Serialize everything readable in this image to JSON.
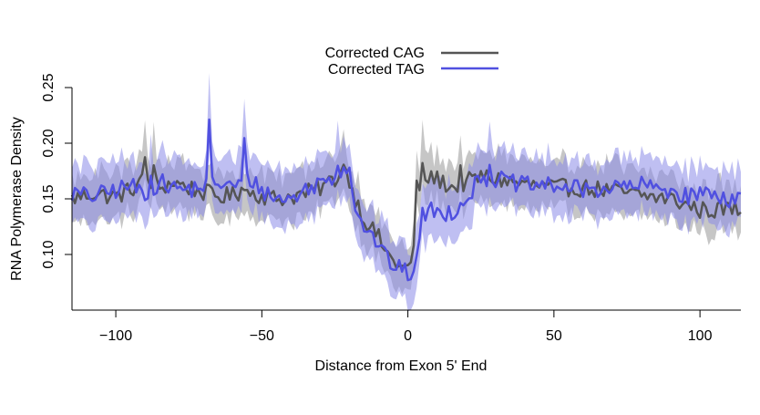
{
  "chart_data": {
    "type": "line",
    "xlabel": "Distance from Exon 5' End",
    "ylabel": "RNA Polymerase Density",
    "xlim": [
      -115,
      114
    ],
    "ylim": [
      0.05,
      0.25
    ],
    "xticks": [
      -100,
      -50,
      0,
      50,
      100
    ],
    "xtick_labels": [
      "−100",
      "−50",
      "0",
      "50",
      "100"
    ],
    "yticks": [
      0.1,
      0.15,
      0.2,
      0.25
    ],
    "ytick_labels": [
      "0.10",
      "0.15",
      "0.20",
      "0.25"
    ],
    "grid": false,
    "legend_position": "top-center",
    "x_range": {
      "start": -115,
      "end": 114,
      "step": 1
    },
    "series": [
      {
        "name": "Corrected CAG",
        "color": "#555555",
        "band_color": "#bcbcbc",
        "band_halfwidth": 0.021,
        "knots": [
          [
            -115,
            0.15
          ],
          [
            -108,
            0.155
          ],
          [
            -100,
            0.152
          ],
          [
            -95,
            0.158
          ],
          [
            -90,
            0.168
          ],
          [
            -85,
            0.16
          ],
          [
            -80,
            0.165
          ],
          [
            -75,
            0.16
          ],
          [
            -70,
            0.156
          ],
          [
            -65,
            0.152
          ],
          [
            -60,
            0.153
          ],
          [
            -55,
            0.157
          ],
          [
            -50,
            0.153
          ],
          [
            -45,
            0.15
          ],
          [
            -40,
            0.152
          ],
          [
            -35,
            0.155
          ],
          [
            -30,
            0.16
          ],
          [
            -25,
            0.168
          ],
          [
            -22,
            0.175
          ],
          [
            -20,
            0.168
          ],
          [
            -18,
            0.15
          ],
          [
            -15,
            0.132
          ],
          [
            -12,
            0.122
          ],
          [
            -10,
            0.115
          ],
          [
            -7,
            0.1
          ],
          [
            -4,
            0.092
          ],
          [
            -1,
            0.087
          ],
          [
            1,
            0.09
          ],
          [
            2,
            0.11
          ],
          [
            3,
            0.16
          ],
          [
            5,
            0.165
          ],
          [
            8,
            0.17
          ],
          [
            12,
            0.165
          ],
          [
            15,
            0.16
          ],
          [
            20,
            0.165
          ],
          [
            25,
            0.17
          ],
          [
            30,
            0.168
          ],
          [
            40,
            0.163
          ],
          [
            50,
            0.16
          ],
          [
            60,
            0.16
          ],
          [
            70,
            0.157
          ],
          [
            80,
            0.153
          ],
          [
            90,
            0.15
          ],
          [
            95,
            0.145
          ],
          [
            100,
            0.14
          ],
          [
            105,
            0.14
          ],
          [
            110,
            0.142
          ],
          [
            114,
            0.14
          ]
        ],
        "spikes": [
          [
            -90,
            0.02
          ],
          [
            -87,
            0.012
          ],
          [
            -57,
            0.012
          ],
          [
            -22,
            0.01
          ],
          [
            5,
            0.01
          ],
          [
            18,
            0.01
          ]
        ]
      },
      {
        "name": "Corrected TAG",
        "color": "#5050e0",
        "band_color": "#8a8ae8",
        "band_halfwidth": 0.025,
        "knots": [
          [
            -115,
            0.155
          ],
          [
            -108,
            0.152
          ],
          [
            -100,
            0.158
          ],
          [
            -95,
            0.162
          ],
          [
            -90,
            0.155
          ],
          [
            -85,
            0.165
          ],
          [
            -80,
            0.16
          ],
          [
            -75,
            0.158
          ],
          [
            -70,
            0.162
          ],
          [
            -65,
            0.165
          ],
          [
            -60,
            0.16
          ],
          [
            -55,
            0.17
          ],
          [
            -50,
            0.158
          ],
          [
            -45,
            0.15
          ],
          [
            -40,
            0.15
          ],
          [
            -35,
            0.158
          ],
          [
            -30,
            0.165
          ],
          [
            -25,
            0.17
          ],
          [
            -22,
            0.18
          ],
          [
            -20,
            0.175
          ],
          [
            -18,
            0.145
          ],
          [
            -15,
            0.125
          ],
          [
            -12,
            0.115
          ],
          [
            -10,
            0.11
          ],
          [
            -7,
            0.095
          ],
          [
            -4,
            0.088
          ],
          [
            -1,
            0.085
          ],
          [
            1,
            0.082
          ],
          [
            3,
            0.095
          ],
          [
            5,
            0.135
          ],
          [
            8,
            0.14
          ],
          [
            12,
            0.137
          ],
          [
            15,
            0.138
          ],
          [
            20,
            0.15
          ],
          [
            25,
            0.17
          ],
          [
            30,
            0.168
          ],
          [
            40,
            0.162
          ],
          [
            50,
            0.162
          ],
          [
            60,
            0.158
          ],
          [
            70,
            0.16
          ],
          [
            80,
            0.162
          ],
          [
            90,
            0.158
          ],
          [
            95,
            0.152
          ],
          [
            100,
            0.155
          ],
          [
            105,
            0.155
          ],
          [
            110,
            0.15
          ],
          [
            114,
            0.152
          ]
        ],
        "spikes": [
          [
            -68,
            0.052
          ],
          [
            -56,
            0.03
          ],
          [
            -88,
            0.01
          ],
          [
            -24,
            0.01
          ],
          [
            28,
            0.012
          ]
        ]
      }
    ]
  }
}
